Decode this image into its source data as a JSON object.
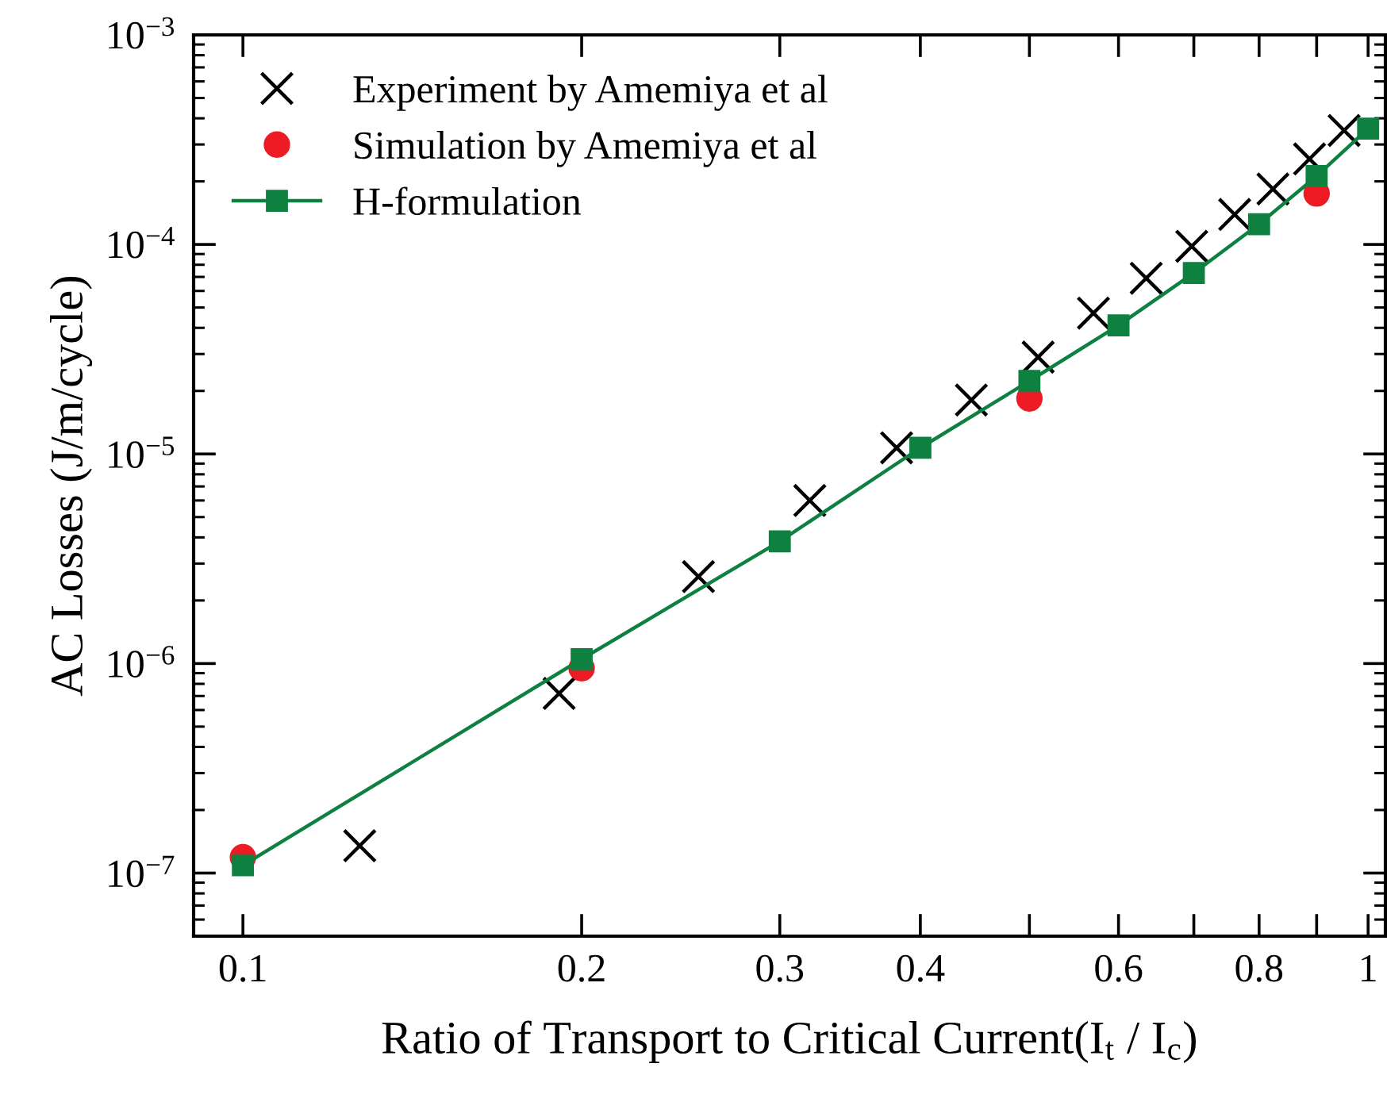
{
  "chart_data": {
    "type": "scatter",
    "xlabel": "Ratio of Transport to Critical Current(I$_{t}$ / I$_{c}$)",
    "ylabel": "AC Losses (J/m/cycle)",
    "log": "xy",
    "legend": "top left",
    "grid": false,
    "xlim": [
      0.0904,
      1.036
    ],
    "ylim": [
      5e-08,
      0.001
    ],
    "xticks": [
      0.1,
      0.2,
      0.3,
      0.4,
      {
        "value": 0.5,
        "label": null
      },
      0.6,
      {
        "value": 0.7,
        "label": null
      },
      0.8,
      {
        "value": 0.9,
        "label": null
      },
      1
    ],
    "yticks": [
      {
        "value": 1e-07,
        "label": "10$^{−7}$"
      },
      {
        "value": 1e-06,
        "label": "10$^{−6}$"
      },
      {
        "value": 1e-05,
        "label": "10$^{−5}$"
      },
      {
        "value": 0.0001,
        "label": "10$^{−4}$"
      },
      {
        "value": 0.001,
        "label": "10$^{−3}$"
      }
    ],
    "series": [
      {
        "name": "Experiment by Amemiya et al",
        "marker": "cross",
        "color": "#000000",
        "x": [
          0.127,
          0.191,
          0.254,
          0.319,
          0.381,
          0.444,
          0.509,
          0.57,
          0.635,
          0.697,
          0.761,
          0.823,
          0.887,
          0.952
        ],
        "values": [
          1.35e-07,
          7.2e-07,
          2.6e-06,
          6e-06,
          1.07e-05,
          1.81e-05,
          2.9e-05,
          4.7e-05,
          6.9e-05,
          9.8e-05,
          0.000139,
          0.000184,
          0.000256,
          0.00035
        ]
      },
      {
        "name": "Simulation by Amemiya et al",
        "marker": "circle",
        "color": "#ed1c24",
        "x": [
          0.1,
          0.2,
          0.5,
          0.9
        ],
        "values": [
          1.19e-07,
          9.5e-07,
          1.84e-05,
          0.000175
        ]
      },
      {
        "name": "H-formulation",
        "type": "line",
        "marker": "square",
        "line_style": "solid",
        "color": "#0e8040",
        "x": [
          0.1,
          0.2,
          0.3,
          0.4,
          0.5,
          0.6,
          0.7,
          0.8,
          0.9,
          1.0
        ],
        "values": [
          1.09e-07,
          1.05e-06,
          3.83e-06,
          1.07e-05,
          2.23e-05,
          4.11e-05,
          7.31e-05,
          0.000125,
          0.000212,
          0.000357
        ]
      }
    ]
  }
}
